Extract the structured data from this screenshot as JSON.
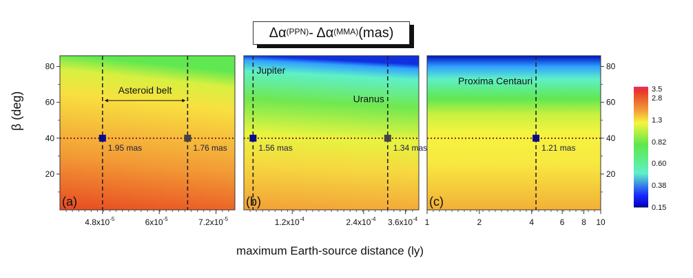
{
  "title": {
    "delta": "Δα",
    "sup1": "(PPN)",
    "mid": " - Δα",
    "sup2": "(MMA)",
    "unit": " (mas)"
  },
  "ylabel": "β (deg)",
  "xlabel": "maximum Earth-source distance (ly)",
  "chart_data": {
    "type": "heatmap",
    "title": "Δα(PPN) - Δα(MMA) (mas)",
    "xlabel": "maximum Earth-source distance (ly)",
    "ylabel": "β (deg)",
    "ylim": [
      0,
      86
    ],
    "yticks": [
      20,
      40,
      60,
      80
    ],
    "reference_beta": 40,
    "colorbar": {
      "ticks": [
        "3.5",
        "2.8",
        "1.3",
        "0.82",
        "0.60",
        "0.38",
        "0.15"
      ],
      "colors": [
        "#e0307a",
        "#e8342a",
        "#f2a038",
        "#f7f440",
        "#5ee84a",
        "#5ef0c8",
        "#1a2aff",
        "#0000c0"
      ]
    },
    "panels": [
      {
        "label": "(a)",
        "xscale": "linear",
        "xlim": [
          3.9e-05,
          7.6e-05
        ],
        "xticks": [
          {
            "v": 4.8e-05,
            "base": "4.8x10",
            "exp": "-5"
          },
          {
            "v": 6e-05,
            "base": "6x10",
            "exp": "-5"
          },
          {
            "v": 7.2e-05,
            "base": "7.2x10",
            "exp": "-5"
          }
        ],
        "gradient": [
          [
            "0",
            "#e84a22"
          ],
          [
            "0.35",
            "#f29a35"
          ],
          [
            "0.75",
            "#f8e040"
          ],
          [
            "0.9",
            "#d8f040"
          ],
          [
            "1",
            "#60e850"
          ]
        ],
        "vlines": [
          4.8e-05,
          6.6e-05
        ],
        "markers": [
          {
            "x": 4.8e-05,
            "beta": 40,
            "label": "1.95 mas",
            "color": "#0a0a8a"
          },
          {
            "x": 6.6e-05,
            "beta": 40,
            "label": "1.76 mas",
            "color": "#444444"
          }
        ],
        "annotations": [
          {
            "text": "Asteroid belt",
            "x1": 4.8e-05,
            "x2": 6.6e-05,
            "beta": 61
          }
        ]
      },
      {
        "label": "(b)",
        "xscale": "log",
        "xlim": [
          7.5e-05,
          0.00041
        ],
        "xticks": [
          {
            "v": 0.00012,
            "base": "1.2x10",
            "exp": "-4"
          },
          {
            "v": 0.00024,
            "base": "2.4x10",
            "exp": "-4"
          },
          {
            "v": 0.00036,
            "base": "3.6x10",
            "exp": "-4"
          }
        ],
        "gradient": [
          [
            "0",
            "#f2a038"
          ],
          [
            "0.3",
            "#f6d840"
          ],
          [
            "0.5",
            "#e6f440"
          ],
          [
            "0.72",
            "#70e850"
          ],
          [
            "0.9",
            "#5ef0c8"
          ],
          [
            "0.97",
            "#30a0ff"
          ],
          [
            "1",
            "#1030e0"
          ]
        ],
        "vlines": [
          8.2e-05,
          0.000303
        ],
        "markers": [
          {
            "x": 8.2e-05,
            "beta": 40,
            "label": "1.56 mas",
            "color": "#0a0a8a"
          },
          {
            "x": 0.000303,
            "beta": 40,
            "label": "1.34 mas",
            "color": "#444444"
          }
        ],
        "annotations": [
          {
            "text": "Jupiter",
            "x": 8.2e-05,
            "beta": 76
          },
          {
            "text": "Uranus",
            "x": 0.000303,
            "beta": 60
          }
        ]
      },
      {
        "label": "(c)",
        "xscale": "log",
        "xlim": [
          1,
          10
        ],
        "xticks": [
          {
            "v": 1,
            "base": "1",
            "exp": ""
          },
          {
            "v": 2,
            "base": "2",
            "exp": ""
          },
          {
            "v": 4,
            "base": "4",
            "exp": ""
          },
          {
            "v": 6,
            "base": "6",
            "exp": ""
          },
          {
            "v": 8,
            "base": "8",
            "exp": ""
          },
          {
            "v": 10,
            "base": "10",
            "exp": ""
          }
        ],
        "gradient": [
          [
            "0",
            "#f2b038"
          ],
          [
            "0.3",
            "#f8e840"
          ],
          [
            "0.5",
            "#f4f440"
          ],
          [
            "0.62",
            "#c8f040"
          ],
          [
            "0.72",
            "#60e850"
          ],
          [
            "0.85",
            "#5ef0c8"
          ],
          [
            "0.93",
            "#30a0ff"
          ],
          [
            "1",
            "#0010c0"
          ]
        ],
        "vlines": [
          4.24
        ],
        "markers": [
          {
            "x": 4.24,
            "beta": 40,
            "label": "1.21 mas",
            "color": "#0a0a8a"
          }
        ],
        "annotations": [
          {
            "text": "Proxima Centauri",
            "x": 4.24,
            "beta": 70
          }
        ]
      }
    ]
  }
}
